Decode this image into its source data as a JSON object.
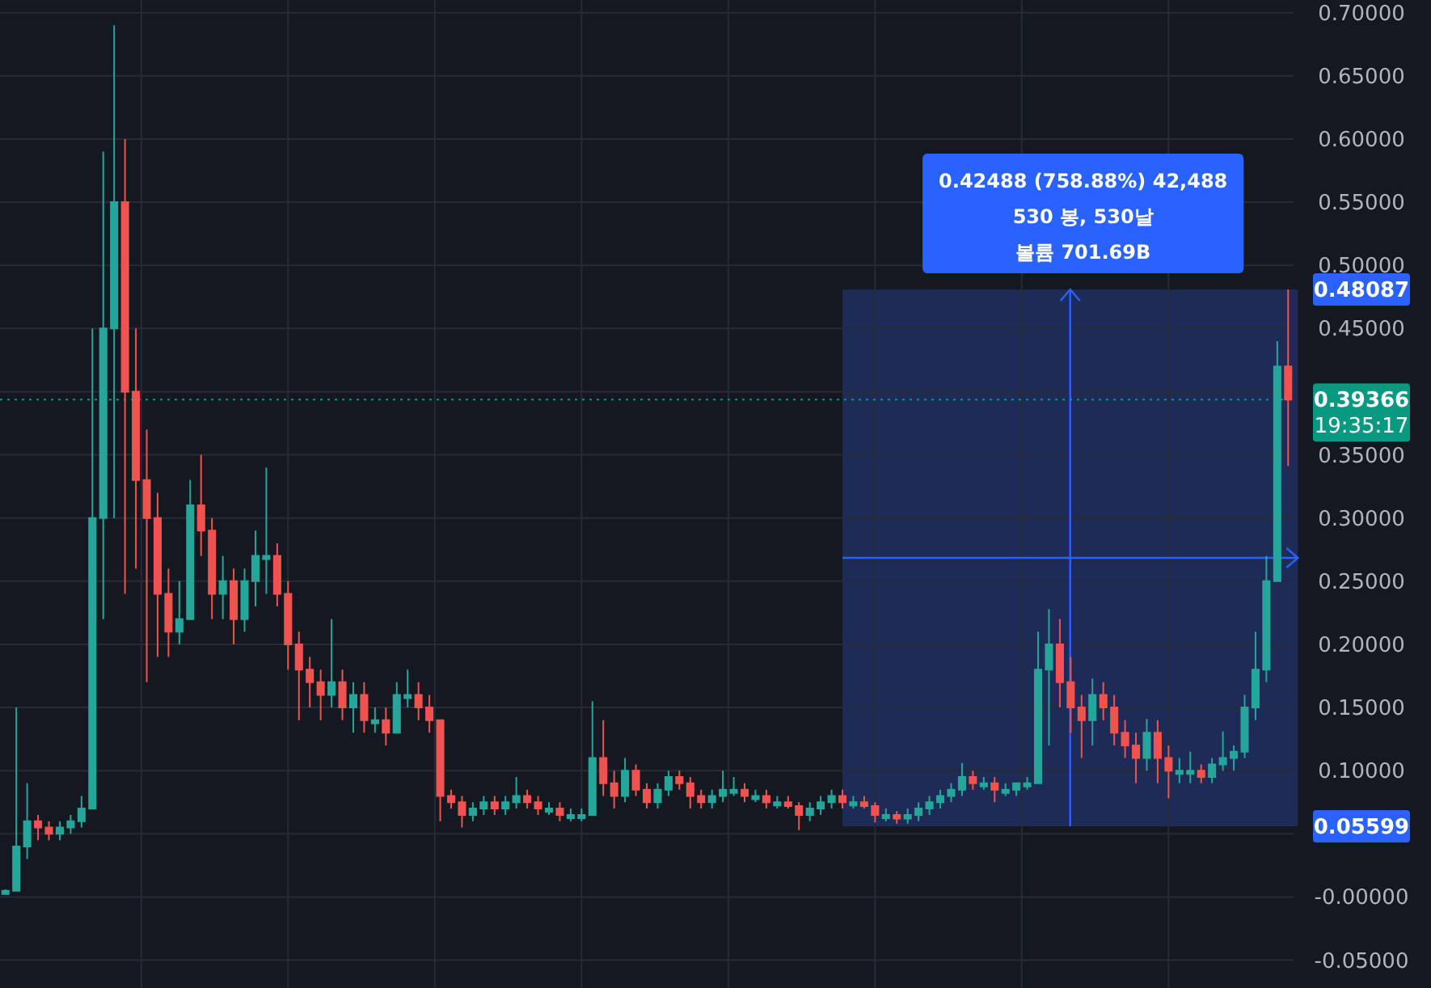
{
  "chart_data": {
    "type": "candlestick",
    "categories": [
      null,
      null,
      null,
      null,
      null,
      null,
      null,
      null,
      null,
      null,
      null,
      null,
      null,
      null,
      null,
      null,
      null,
      null,
      null,
      null,
      null,
      null,
      null,
      null,
      null,
      null,
      null,
      null,
      null,
      null,
      null,
      null,
      null,
      null,
      null,
      null,
      null,
      null,
      null,
      null,
      null,
      null,
      null,
      null,
      null,
      null,
      null,
      null,
      null,
      null,
      null,
      null,
      null,
      null,
      null,
      null,
      null,
      null,
      null,
      null,
      null,
      null,
      null,
      null,
      null,
      null,
      null,
      null,
      null,
      null,
      null,
      null,
      null,
      null,
      null,
      null,
      null,
      null,
      null,
      null,
      null,
      null,
      null,
      null,
      null,
      null,
      null,
      null,
      null,
      null,
      null,
      null,
      null,
      null,
      null,
      null,
      null,
      null,
      null,
      null,
      null,
      null,
      null,
      null,
      null,
      null,
      null,
      null,
      null,
      null,
      null,
      null,
      null,
      null,
      null,
      null,
      null,
      null,
      null
    ],
    "ohlc": [
      [
        0.005,
        0.006,
        0.004,
        0.005
      ],
      [
        0.005,
        0.15,
        0.005,
        0.04
      ],
      [
        0.04,
        0.09,
        0.03,
        0.06
      ],
      [
        0.06,
        0.065,
        0.045,
        0.055
      ],
      [
        0.055,
        0.06,
        0.045,
        0.05
      ],
      [
        0.05,
        0.06,
        0.045,
        0.055
      ],
      [
        0.055,
        0.065,
        0.05,
        0.06
      ],
      [
        0.06,
        0.08,
        0.055,
        0.07
      ],
      [
        0.07,
        0.45,
        0.07,
        0.3
      ],
      [
        0.3,
        0.59,
        0.22,
        0.45
      ],
      [
        0.45,
        0.69,
        0.3,
        0.55
      ],
      [
        0.55,
        0.6,
        0.24,
        0.4
      ],
      [
        0.4,
        0.45,
        0.26,
        0.33
      ],
      [
        0.33,
        0.37,
        0.17,
        0.3
      ],
      [
        0.3,
        0.32,
        0.19,
        0.24
      ],
      [
        0.24,
        0.26,
        0.19,
        0.21
      ],
      [
        0.21,
        0.25,
        0.2,
        0.22
      ],
      [
        0.22,
        0.33,
        0.22,
        0.31
      ],
      [
        0.31,
        0.35,
        0.27,
        0.29
      ],
      [
        0.29,
        0.3,
        0.22,
        0.24
      ],
      [
        0.24,
        0.27,
        0.22,
        0.25
      ],
      [
        0.25,
        0.26,
        0.2,
        0.22
      ],
      [
        0.22,
        0.26,
        0.21,
        0.25
      ],
      [
        0.25,
        0.29,
        0.23,
        0.27
      ],
      [
        0.27,
        0.34,
        0.24,
        0.27
      ],
      [
        0.27,
        0.28,
        0.23,
        0.24
      ],
      [
        0.24,
        0.25,
        0.18,
        0.2
      ],
      [
        0.2,
        0.21,
        0.14,
        0.18
      ],
      [
        0.18,
        0.19,
        0.15,
        0.17
      ],
      [
        0.17,
        0.18,
        0.14,
        0.16
      ],
      [
        0.16,
        0.22,
        0.15,
        0.17
      ],
      [
        0.17,
        0.18,
        0.14,
        0.15
      ],
      [
        0.15,
        0.17,
        0.13,
        0.16
      ],
      [
        0.16,
        0.17,
        0.13,
        0.14
      ],
      [
        0.14,
        0.15,
        0.13,
        0.14
      ],
      [
        0.14,
        0.15,
        0.12,
        0.13
      ],
      [
        0.13,
        0.17,
        0.13,
        0.16
      ],
      [
        0.16,
        0.18,
        0.15,
        0.16
      ],
      [
        0.16,
        0.17,
        0.14,
        0.15
      ],
      [
        0.15,
        0.16,
        0.13,
        0.14
      ],
      [
        0.14,
        0.14,
        0.06,
        0.08
      ],
      [
        0.08,
        0.085,
        0.07,
        0.075
      ],
      [
        0.075,
        0.08,
        0.055,
        0.065
      ],
      [
        0.065,
        0.075,
        0.06,
        0.07
      ],
      [
        0.07,
        0.08,
        0.065,
        0.075
      ],
      [
        0.075,
        0.08,
        0.065,
        0.07
      ],
      [
        0.07,
        0.08,
        0.065,
        0.075
      ],
      [
        0.075,
        0.095,
        0.07,
        0.08
      ],
      [
        0.08,
        0.085,
        0.07,
        0.075
      ],
      [
        0.075,
        0.08,
        0.065,
        0.07
      ],
      [
        0.07,
        0.075,
        0.065,
        0.07
      ],
      [
        0.07,
        0.075,
        0.06,
        0.065
      ],
      [
        0.065,
        0.07,
        0.06,
        0.065
      ],
      [
        0.065,
        0.07,
        0.06,
        0.065
      ],
      [
        0.065,
        0.155,
        0.065,
        0.11
      ],
      [
        0.11,
        0.14,
        0.08,
        0.09
      ],
      [
        0.09,
        0.1,
        0.07,
        0.08
      ],
      [
        0.08,
        0.11,
        0.075,
        0.1
      ],
      [
        0.1,
        0.105,
        0.08,
        0.085
      ],
      [
        0.085,
        0.09,
        0.07,
        0.075
      ],
      [
        0.075,
        0.09,
        0.07,
        0.085
      ],
      [
        0.085,
        0.1,
        0.08,
        0.095
      ],
      [
        0.095,
        0.1,
        0.085,
        0.09
      ],
      [
        0.09,
        0.095,
        0.07,
        0.08
      ],
      [
        0.08,
        0.085,
        0.07,
        0.075
      ],
      [
        0.075,
        0.085,
        0.07,
        0.08
      ],
      [
        0.08,
        0.1,
        0.075,
        0.085
      ],
      [
        0.085,
        0.095,
        0.08,
        0.085
      ],
      [
        0.085,
        0.09,
        0.075,
        0.08
      ],
      [
        0.08,
        0.085,
        0.075,
        0.08
      ],
      [
        0.08,
        0.085,
        0.07,
        0.075
      ],
      [
        0.075,
        0.08,
        0.07,
        0.075
      ],
      [
        0.075,
        0.08,
        0.07,
        0.072
      ],
      [
        0.072,
        0.075,
        0.053,
        0.065
      ],
      [
        0.065,
        0.075,
        0.06,
        0.07
      ],
      [
        0.07,
        0.08,
        0.065,
        0.075
      ],
      [
        0.075,
        0.085,
        0.07,
        0.08
      ],
      [
        0.08,
        0.085,
        0.07,
        0.075
      ],
      [
        0.075,
        0.08,
        0.07,
        0.075
      ],
      [
        0.075,
        0.08,
        0.07,
        0.072
      ],
      [
        0.072,
        0.075,
        0.059,
        0.065
      ],
      [
        0.065,
        0.07,
        0.06,
        0.065
      ],
      [
        0.065,
        0.068,
        0.058,
        0.062
      ],
      [
        0.062,
        0.07,
        0.058,
        0.065
      ],
      [
        0.065,
        0.075,
        0.06,
        0.07
      ],
      [
        0.07,
        0.08,
        0.065,
        0.075
      ],
      [
        0.075,
        0.085,
        0.07,
        0.08
      ],
      [
        0.08,
        0.09,
        0.075,
        0.085
      ],
      [
        0.085,
        0.106,
        0.08,
        0.095
      ],
      [
        0.095,
        0.1,
        0.085,
        0.09
      ],
      [
        0.09,
        0.095,
        0.085,
        0.09
      ],
      [
        0.09,
        0.095,
        0.075,
        0.085
      ],
      [
        0.085,
        0.09,
        0.08,
        0.085
      ],
      [
        0.085,
        0.09,
        0.08,
        0.09
      ],
      [
        0.09,
        0.095,
        0.085,
        0.09
      ],
      [
        0.09,
        0.21,
        0.09,
        0.18
      ],
      [
        0.18,
        0.228,
        0.12,
        0.2
      ],
      [
        0.2,
        0.22,
        0.15,
        0.17
      ],
      [
        0.17,
        0.19,
        0.13,
        0.15
      ],
      [
        0.15,
        0.16,
        0.11,
        0.14
      ],
      [
        0.14,
        0.173,
        0.12,
        0.16
      ],
      [
        0.16,
        0.17,
        0.14,
        0.15
      ],
      [
        0.15,
        0.16,
        0.12,
        0.13
      ],
      [
        0.13,
        0.14,
        0.11,
        0.12
      ],
      [
        0.12,
        0.13,
        0.09,
        0.11
      ],
      [
        0.11,
        0.141,
        0.1,
        0.13
      ],
      [
        0.13,
        0.14,
        0.09,
        0.11
      ],
      [
        0.11,
        0.12,
        0.078,
        0.1
      ],
      [
        0.1,
        0.11,
        0.09,
        0.1
      ],
      [
        0.1,
        0.115,
        0.09,
        0.1
      ],
      [
        0.1,
        0.105,
        0.09,
        0.095
      ],
      [
        0.095,
        0.11,
        0.09,
        0.105
      ],
      [
        0.105,
        0.131,
        0.1,
        0.11
      ],
      [
        0.11,
        0.12,
        0.1,
        0.115
      ],
      [
        0.115,
        0.16,
        0.11,
        0.15
      ],
      [
        0.15,
        0.21,
        0.14,
        0.18
      ],
      [
        0.18,
        0.27,
        0.17,
        0.25
      ],
      [
        0.25,
        0.44,
        0.25,
        0.42
      ],
      [
        0.42,
        0.48087,
        0.341,
        0.39366
      ]
    ],
    "ylim": [
      -0.072,
      0.71
    ],
    "yticks": [
      {
        "value": -0.05,
        "label": "-0.05000"
      },
      {
        "value": 0,
        "label": "-0.00000"
      },
      {
        "value": 0.05,
        "label": null
      },
      {
        "value": 0.1,
        "label": "0.10000"
      },
      {
        "value": 0.15,
        "label": "0.15000"
      },
      {
        "value": 0.2,
        "label": "0.20000"
      },
      {
        "value": 0.25,
        "label": "0.25000"
      },
      {
        "value": 0.3,
        "label": "0.30000"
      },
      {
        "value": 0.35,
        "label": "0.35000"
      },
      {
        "value": 0.4,
        "label": null
      },
      {
        "value": 0.45,
        "label": "0.45000"
      },
      {
        "value": 0.5,
        "label": "0.50000"
      },
      {
        "value": 0.55,
        "label": "0.55000"
      },
      {
        "value": 0.6,
        "label": "0.60000"
      },
      {
        "value": 0.65,
        "label": "0.65000"
      },
      {
        "value": 0.7,
        "label": "0.70000"
      }
    ],
    "tick_labels": "y",
    "grid": true,
    "colors": [
      "#26a69a",
      "#26a69a",
      "#26a69a",
      "#ef5350",
      "#ef5350",
      "#26a69a",
      "#26a69a",
      "#26a69a",
      "#26a69a",
      "#26a69a",
      "#26a69a",
      "#ef5350",
      "#ef5350",
      "#ef5350",
      "#ef5350",
      "#ef5350",
      "#26a69a",
      "#26a69a",
      "#ef5350",
      "#ef5350",
      "#26a69a",
      "#ef5350",
      "#26a69a",
      "#26a69a",
      "#26a69a",
      "#ef5350",
      "#ef5350",
      "#ef5350",
      "#ef5350",
      "#ef5350",
      "#26a69a",
      "#ef5350",
      "#26a69a",
      "#ef5350",
      "#26a69a",
      "#ef5350",
      "#26a69a",
      "#26a69a",
      "#ef5350",
      "#ef5350",
      "#ef5350",
      "#ef5350",
      "#ef5350",
      "#26a69a",
      "#26a69a",
      "#ef5350",
      "#26a69a",
      "#26a69a",
      "#ef5350",
      "#ef5350",
      "#26a69a",
      "#ef5350",
      "#26a69a",
      "#26a69a",
      "#26a69a",
      "#ef5350",
      "#ef5350",
      "#26a69a",
      "#ef5350",
      "#ef5350",
      "#26a69a",
      "#26a69a",
      "#ef5350",
      "#ef5350",
      "#ef5350",
      "#26a69a",
      "#26a69a",
      "#26a69a",
      "#ef5350",
      "#26a69a",
      "#ef5350",
      "#26a69a",
      "#ef5350",
      "#ef5350",
      "#26a69a",
      "#26a69a",
      "#26a69a",
      "#ef5350",
      "#26a69a",
      "#ef5350",
      "#ef5350",
      "#26a69a",
      "#ef5350",
      "#26a69a",
      "#26a69a",
      "#26a69a",
      "#26a69a",
      "#26a69a",
      "#26a69a",
      "#ef5350",
      "#26a69a",
      "#ef5350",
      "#26a69a",
      "#26a69a",
      "#26a69a",
      "#26a69a",
      "#26a69a",
      "#ef5350",
      "#ef5350",
      "#ef5350",
      "#26a69a",
      "#ef5350",
      "#ef5350",
      "#ef5350",
      "#ef5350",
      "#26a69a",
      "#ef5350",
      "#ef5350",
      "#26a69a",
      "#26a69a",
      "#ef5350",
      "#26a69a",
      "#26a69a",
      "#26a69a",
      "#26a69a",
      "#26a69a",
      "#26a69a",
      "#26a69a",
      "#ef5350"
    ],
    "ref_lines": [
      {
        "axis": "y",
        "value": 0.39366,
        "label": "0.39366",
        "color": "#089981",
        "line_style": "dotted"
      }
    ],
    "bands": [
      {
        "axis": "y",
        "from": 0.05599,
        "to": 0.48087,
        "color": "#1e2b56"
      }
    ],
    "annotations": [
      "0.42488 (758.88%) 42,488",
      "530 봉, 530날",
      "볼륨 701.69B",
      "0.48087",
      "0.05599",
      "19:35:17"
    ]
  }
}
